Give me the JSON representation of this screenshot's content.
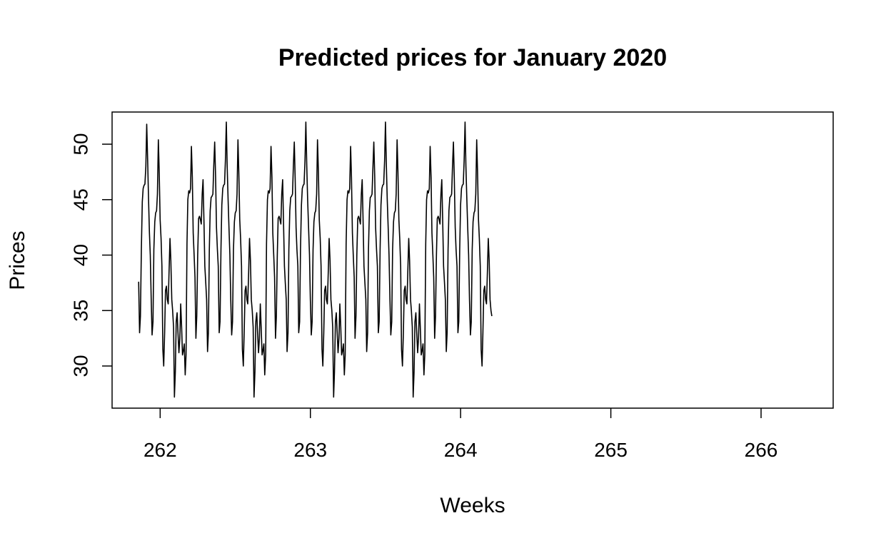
{
  "chart_data": {
    "type": "line",
    "title": "Predicted prices for January 2020",
    "xlabel": "Weeks",
    "ylabel": "Prices",
    "xlim": [
      261.68,
      266.48
    ],
    "ylim": [
      26.2,
      52.9
    ],
    "xticks": [
      262,
      263,
      264,
      265,
      266
    ],
    "xtick_labels": [
      "262",
      "263",
      "264",
      "265",
      "266"
    ],
    "yticks": [
      30,
      35,
      40,
      45,
      50
    ],
    "ytick_labels": [
      "30",
      "35",
      "40",
      "45",
      "50"
    ],
    "grid": false,
    "legend": "none",
    "line_color": "#000000",
    "series": [
      {
        "x_start": 261.857,
        "x_step": 0.005952,
        "values": [
          37.6,
          33.0,
          34.5,
          40.5,
          44.8,
          46.0,
          46.3,
          46.4,
          48.0,
          51.8,
          48.6,
          45.2,
          42.0,
          40.0,
          36.0,
          32.8,
          34.0,
          40.5,
          43.0,
          43.8,
          44.0,
          45.5,
          50.4,
          47.5,
          43.2,
          41.5,
          39.0,
          31.5,
          30.0,
          33.0,
          36.8,
          37.2,
          36.0,
          35.6,
          38.5,
          41.5,
          39.5,
          36.0,
          35.0,
          33.5,
          27.2,
          29.5,
          34.0,
          34.8,
          33.0,
          31.2,
          32.5,
          35.6,
          33.5,
          31.0,
          31.4,
          32.0,
          29.2,
          31.0,
          41.0,
          45.0,
          45.8,
          45.6,
          46.0,
          49.8,
          47.0,
          42.0,
          40.0,
          38.0,
          32.5,
          34.5,
          40.0,
          43.3,
          43.5,
          43.2,
          42.8,
          45.5,
          46.8,
          43.0,
          39.0,
          37.5,
          36.0,
          31.3,
          33.0,
          40.5,
          44.0,
          45.2,
          45.3,
          45.5,
          48.0,
          50.2,
          47.0,
          42.5,
          40.5,
          39.0,
          33.0,
          34.0,
          40.5,
          44.5,
          46.0,
          46.3,
          46.4,
          48.5,
          52.0,
          48.0,
          45.0,
          42.5,
          40.0,
          36.0,
          32.8,
          34.0,
          40.5,
          43.0,
          43.8,
          44.0,
          45.5,
          50.4,
          47.5,
          43.2,
          41.5,
          39.0,
          31.5,
          30.0,
          33.0,
          36.8,
          37.2,
          36.0,
          35.6,
          38.5,
          41.5,
          39.5,
          36.0,
          35.0,
          33.5,
          27.2,
          29.5,
          34.0,
          34.8,
          33.0,
          31.2,
          32.5,
          35.6,
          33.5,
          31.0,
          31.4,
          32.0,
          29.2,
          31.0,
          41.0,
          45.0,
          45.8,
          45.6,
          46.0,
          49.8,
          47.0,
          42.0,
          40.0,
          38.0,
          32.5,
          34.5,
          40.0,
          43.3,
          43.5,
          43.2,
          42.8,
          45.5,
          46.8,
          43.0,
          39.0,
          37.5,
          36.0,
          31.3,
          33.0,
          40.5,
          44.0,
          45.2,
          45.3,
          45.5,
          48.0,
          50.2,
          47.0,
          42.5,
          40.5,
          39.0,
          33.0,
          34.0,
          40.5,
          44.5,
          46.0,
          46.3,
          46.4,
          48.5,
          52.0,
          48.0,
          45.0,
          42.5,
          40.0,
          36.0,
          32.8,
          34.0,
          40.5,
          43.0,
          43.8,
          44.0,
          45.5,
          50.4,
          47.5,
          43.2,
          41.5,
          39.0,
          31.5,
          30.0,
          33.0,
          36.8,
          37.2,
          36.0,
          35.6,
          38.5,
          41.5,
          39.5,
          36.0,
          35.0,
          33.5,
          27.2,
          29.5,
          34.0,
          34.8,
          33.0,
          31.2,
          32.5,
          35.6,
          33.5,
          31.0,
          31.4,
          32.0,
          29.2,
          31.0,
          41.0,
          45.0,
          45.8,
          45.6,
          46.0,
          49.8,
          47.0,
          42.0,
          40.0,
          38.0,
          32.5,
          34.5,
          40.0,
          43.3,
          43.5,
          43.2,
          42.8,
          45.5,
          46.8,
          43.0,
          39.0,
          37.5,
          36.0,
          31.3,
          33.0,
          40.5,
          44.0,
          45.2,
          45.3,
          45.5,
          48.0,
          50.2,
          47.0,
          42.5,
          40.5,
          39.0,
          33.0,
          34.0,
          40.5,
          44.5,
          46.0,
          46.3,
          46.4,
          48.5,
          52.0,
          48.0,
          45.0,
          42.5,
          40.0,
          36.0,
          32.8,
          34.0,
          40.5,
          43.0,
          43.8,
          44.0,
          45.5,
          50.4,
          47.5,
          43.2,
          41.5,
          39.0,
          31.5,
          30.0,
          33.0,
          36.8,
          37.2,
          36.0,
          35.6,
          38.5,
          41.5,
          39.5,
          36.0,
          35.0,
          33.5,
          27.2,
          29.5,
          34.0,
          34.8,
          33.0,
          31.2,
          32.5,
          35.6,
          33.5,
          31.0,
          31.4,
          32.0,
          29.2,
          31.0,
          41.0,
          45.0,
          45.8,
          45.6,
          46.0,
          49.8,
          47.0,
          42.0,
          40.0,
          38.0,
          32.5,
          34.5,
          40.0,
          43.3,
          43.5,
          43.2,
          42.8,
          45.5,
          46.8,
          43.0,
          39.0,
          37.5,
          36.0,
          31.3,
          33.0,
          40.5,
          44.0,
          45.2,
          45.3,
          45.5,
          48.0,
          50.2,
          47.0,
          42.5,
          40.5,
          39.0,
          33.0,
          34.0,
          40.5,
          44.5,
          46.0,
          46.3,
          46.4,
          48.5,
          52.0,
          48.0,
          45.0,
          42.5,
          40.0,
          36.0,
          32.8,
          34.0,
          40.5,
          43.0,
          43.8,
          44.0,
          45.5,
          50.4,
          47.5,
          43.2,
          41.5,
          39.0,
          31.5,
          30.0,
          33.0,
          36.8,
          37.2,
          36.0,
          35.6,
          38.5,
          41.5,
          39.5,
          36.0,
          35.0,
          34.5
        ]
      }
    ]
  }
}
